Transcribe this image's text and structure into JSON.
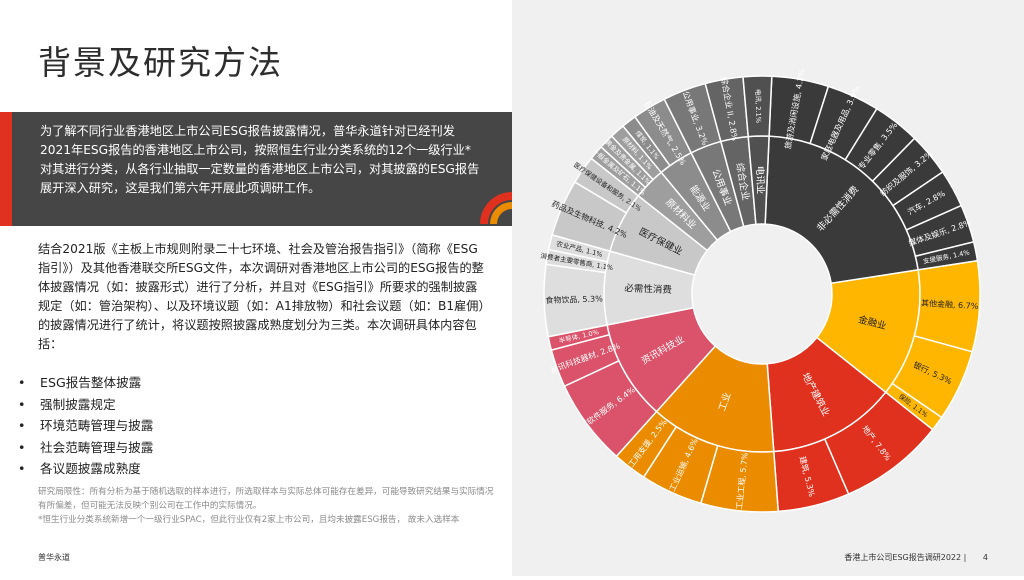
{
  "page": {
    "title": "背景及研究方法",
    "intro": "为了解不同行业香港地区上市公司ESG报告披露情况，普华永道针对已经刊发2021年ESG报告的香港地区上市公司，按照恒生行业分类系统的12个一级行业*对其进行分类，从各行业抽取一定数量的香港地区上市公司，对其披露的ESG报告展开深入研究，这是我们第六年开展此项调研工作。",
    "body": "结合2021版《主板上市规则附录二十七环境、社会及管治报告指引》（简称《ESG指引》）及其他香港联交所ESG文件，本次调研对香港地区上市公司的ESG报告的整体披露情况（如：披露形式）进行了分析，并且对《ESG指引》所要求的强制披露规定（如：管治架构）、以及环境议题（如：A1排放物）和社会议题（如：B1雇佣）的披露情况进行了统计，将议题按照披露成熟度划分为三类。本次调研具体内容包括：",
    "bullets": [
      "ESG报告整体披露",
      "强制披露规定",
      "环境范畴管理与披露",
      "社会范畴管理与披露",
      "各议题披露成熟度"
    ],
    "footnote1": "研究局限性：所有分析为基于随机选取的样本进行，所选取样本与实际总体可能存在差异，可能导致研究结果与实际情况有所偏差，但可能无法反映个别公司在工作中的实际情况。",
    "footnote2": "*恒生行业分类系统新增一个一级行业SPAC，但此行业仅有2家上市公司，且均未披露ESG报告，  故未入选样本",
    "footer_left": "普华永道",
    "footer_right": "香港上市公司ESG报告调研2022 |",
    "page_number": "4"
  },
  "colors": {
    "intro_bg": "#464646",
    "accent_red": "#e0301e",
    "panel_bg": "#f0f0f0"
  },
  "chart_data": {
    "type": "sunburst",
    "groups": [
      {
        "name": "非必需性消费",
        "color": "#3a3a3a",
        "children": [
          {
            "name": "旅游及消闲设施",
            "value": 4.2
          },
          {
            "name": "家庭电器及用品",
            "value": 3.9
          },
          {
            "name": "专业零售",
            "value": 3.5
          },
          {
            "name": "纺织及服饰",
            "value": 3.2
          },
          {
            "name": "汽车",
            "value": 2.8
          },
          {
            "name": "媒体及娱乐",
            "value": 2.8
          },
          {
            "name": "支援服务",
            "value": 1.4
          }
        ]
      },
      {
        "name": "金融业",
        "color": "#ffb600",
        "children": [
          {
            "name": "其他金融",
            "value": 6.7
          },
          {
            "name": "银行",
            "value": 5.3
          },
          {
            "name": "保险",
            "value": 1.1
          }
        ]
      },
      {
        "name": "地产建筑业",
        "color": "#e0301e",
        "children": [
          {
            "name": "地产",
            "value": 7.8
          },
          {
            "name": "建筑",
            "value": 5.3
          }
        ]
      },
      {
        "name": "工业",
        "color": "#eb8c00",
        "children": [
          {
            "name": "工业工程",
            "value": 5.7
          },
          {
            "name": "工业运输",
            "value": 4.6
          },
          {
            "name": "工用支援",
            "value": 2.5
          }
        ]
      },
      {
        "name": "资讯科技业",
        "color": "#db536a",
        "children": [
          {
            "name": "软件服务",
            "value": 6.4
          },
          {
            "name": "资讯科技器材",
            "value": 2.8
          },
          {
            "name": "半导体",
            "value": 1.0
          }
        ]
      },
      {
        "name": "必需性消费",
        "color": "#dedede",
        "children": [
          {
            "name": "食物饮品",
            "value": 5.3
          },
          {
            "name": "消费者主要零售商",
            "value": 1.1
          },
          {
            "name": "农业产品",
            "value": 1.1
          }
        ]
      },
      {
        "name": "医疗保健业",
        "color": "#c8c8c8",
        "children": [
          {
            "name": "药品及生物科技",
            "value": 4.2
          },
          {
            "name": "医疗保健设备和服务",
            "value": 2.1
          }
        ]
      },
      {
        "name": "原材料业",
        "color": "#9e9e9e",
        "children": [
          {
            "name": "一般金属及矿石",
            "value": 1.1
          },
          {
            "name": "黄金及贵金属",
            "value": 1.1
          },
          {
            "name": "原材料",
            "value": 1.1
          }
        ]
      },
      {
        "name": "能源业",
        "color": "#8c8c8c",
        "children": [
          {
            "name": "煤炭",
            "value": 1.1
          },
          {
            "name": "石油及天然气",
            "value": 2.5
          }
        ]
      },
      {
        "name": "公用事业",
        "color": "#787878",
        "children": [
          {
            "name": "公用事业",
            "value": 3.2
          }
        ]
      },
      {
        "name": "综合企业",
        "color": "#646464",
        "children": [
          {
            "name": "综合企业 II",
            "value": 2.8
          }
        ]
      },
      {
        "name": "电讯业",
        "color": "#505050",
        "children": [
          {
            "name": "电讯",
            "value": 2.1
          }
        ]
      }
    ]
  }
}
